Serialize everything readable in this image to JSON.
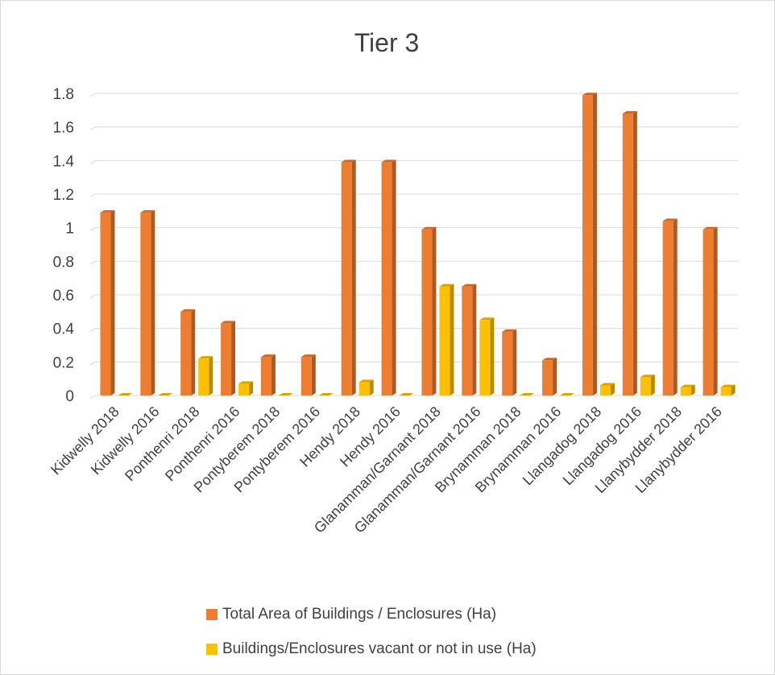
{
  "chart_data": {
    "type": "bar",
    "title": "Tier 3",
    "ylim": [
      0,
      1.8
    ],
    "yticks": [
      "0",
      "0.2",
      "0.4",
      "0.6",
      "0.8",
      "1",
      "1.2",
      "1.4",
      "1.6",
      "1.8"
    ],
    "grid": true,
    "legend_position": "bottom",
    "categories": [
      "Kidwelly 2018",
      "Kidwelly 2016",
      "Ponthenri 2018",
      "Ponthenri 2016",
      "Pontyberem 2018",
      "Pontyberem 2016",
      "Hendy 2018",
      "Hendy 2016",
      "Glanamman/Garnant 2018",
      "Glanamman/Garnant 2016",
      "Brynamman 2018",
      "Brynamman 2016",
      "Llangadog 2018",
      "Llangadog 2016",
      "Llanybydder 2018",
      "Llanybydder 2016"
    ],
    "series": [
      {
        "name": "Total Area of Buildings / Enclosures (Ha)",
        "color": "#ED7D31",
        "values": [
          1.09,
          1.09,
          0.5,
          0.43,
          0.23,
          0.23,
          1.39,
          1.39,
          0.99,
          0.65,
          0.38,
          0.21,
          1.79,
          1.68,
          1.04,
          0.99
        ]
      },
      {
        "name": "Buildings/Enclosures vacant or not in use (Ha)",
        "color": "#FFC000",
        "values": [
          0,
          0,
          0.22,
          0.07,
          0,
          0,
          0.08,
          0,
          0.65,
          0.45,
          0,
          0,
          0.06,
          0.11,
          0.05,
          0.05
        ]
      }
    ]
  }
}
